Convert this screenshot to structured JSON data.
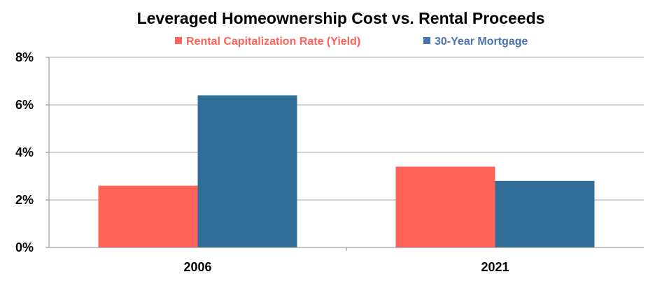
{
  "chart_data": {
    "type": "bar",
    "title": "Leveraged Homeownership Cost vs. Rental Proceeds",
    "categories": [
      "2006",
      "2021"
    ],
    "series": [
      {
        "name": "Rental Capitalization Rate (Yield)",
        "values": [
          2.6,
          3.4
        ],
        "color": "#FF6259",
        "legend_text_color": "#FF6259"
      },
      {
        "name": "30-Year Mortgage",
        "values": [
          6.4,
          2.8
        ],
        "color": "#306E98",
        "legend_text_color": "#4A74AE"
      }
    ],
    "ylim": [
      0,
      8
    ],
    "yticks": [
      0,
      2,
      4,
      6,
      8
    ],
    "ytick_labels": [
      "0%",
      "2%",
      "4%",
      "6%",
      "8%"
    ],
    "xlabel": "",
    "ylabel": "",
    "grid": true,
    "legend_position": "top-center"
  }
}
